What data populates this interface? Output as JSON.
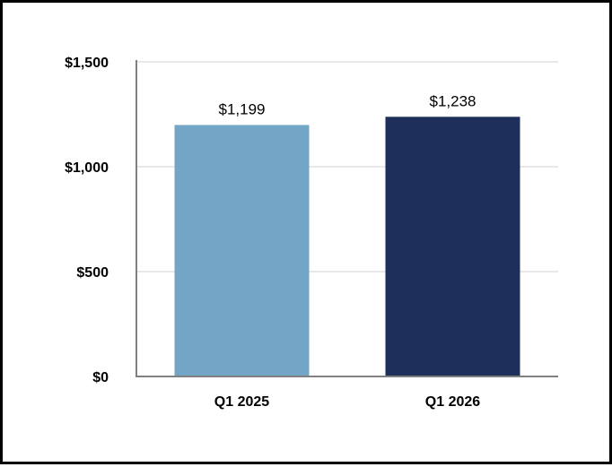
{
  "chart_data": {
    "type": "bar",
    "title": "",
    "xlabel": "",
    "ylabel": "",
    "categories": [
      "Q1 2025",
      "Q1 2026"
    ],
    "values": [
      1199,
      1238
    ],
    "data_labels": [
      "$1,199",
      "$1,238"
    ],
    "bar_colors": [
      "#73a5c6",
      "#1f2f5c"
    ],
    "ylim": [
      0,
      1500
    ],
    "yticks": [
      0,
      500,
      1000,
      1500
    ],
    "ytick_labels": [
      "$0",
      "$500",
      "$1,000",
      "$1,500"
    ],
    "grid": true,
    "legend": "none"
  }
}
